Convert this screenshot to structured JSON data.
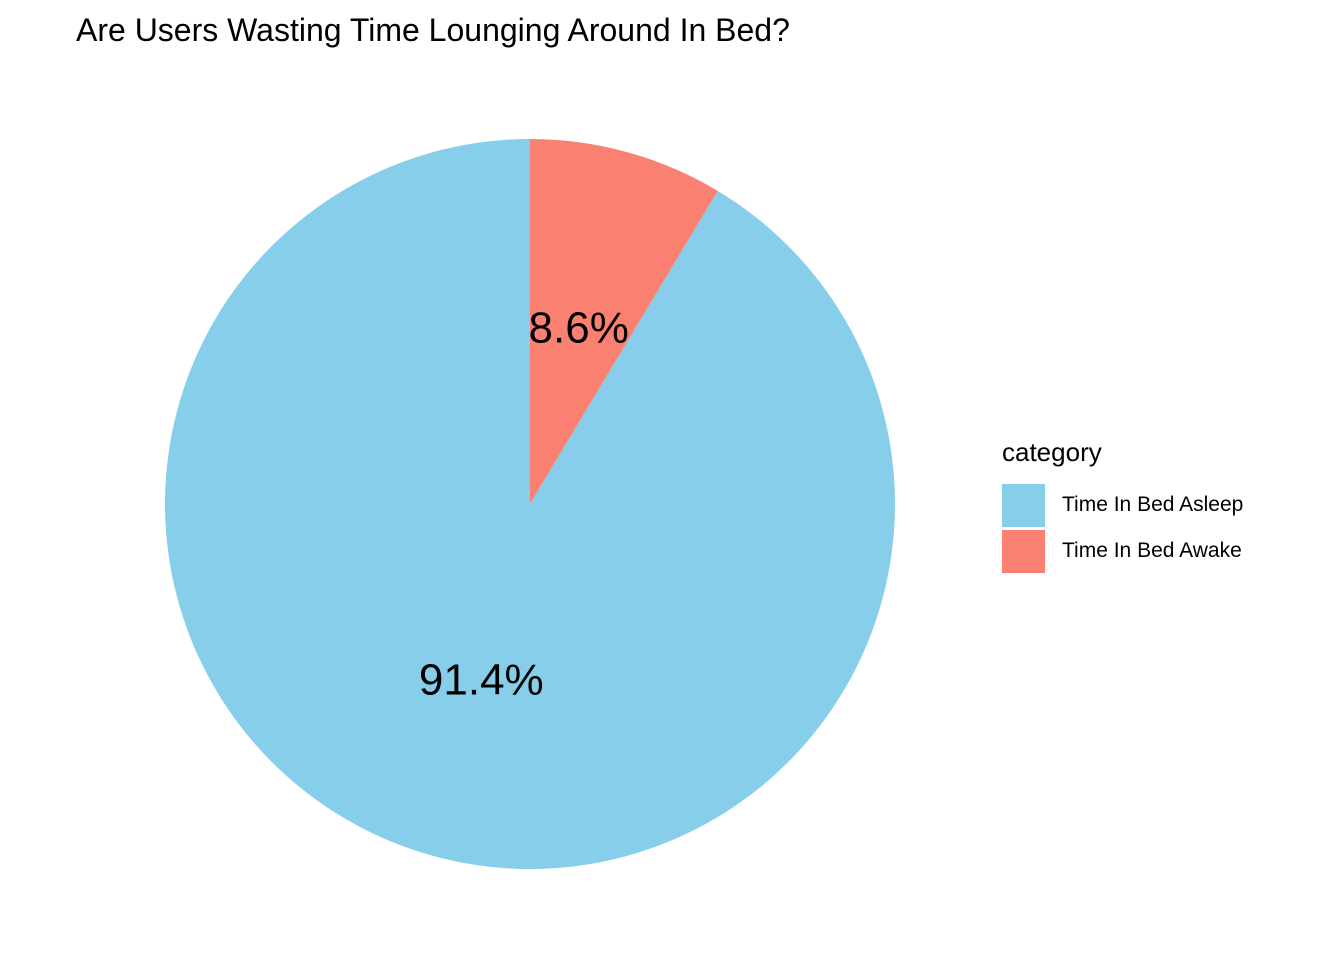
{
  "chart_data": {
    "type": "pie",
    "title": "Are Users Wasting Time Lounging Around In Bed?",
    "legend_title": "category",
    "legend_position": "right",
    "slices": [
      {
        "name": "Time In Bed Asleep",
        "value": 91.4,
        "label": "91.4%",
        "color": "#87CEEB"
      },
      {
        "name": "Time In Bed Awake",
        "value": 8.6,
        "label": "8.6%",
        "color": "#FA8072"
      }
    ]
  }
}
